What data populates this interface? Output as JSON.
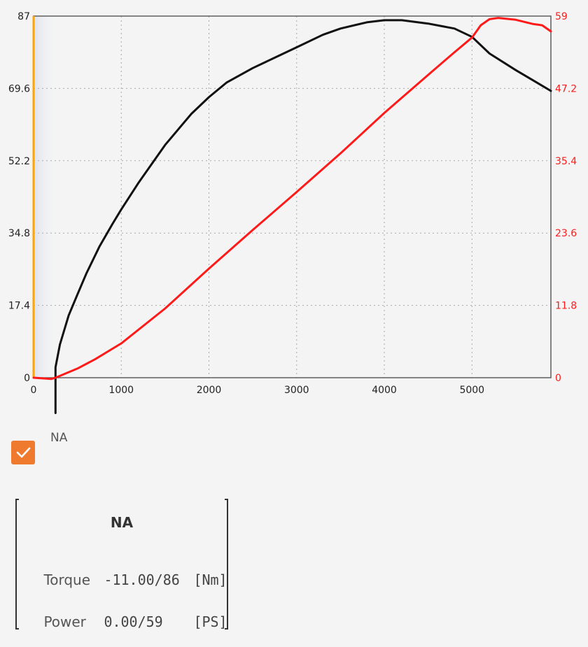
{
  "colors": {
    "torque": "#111111",
    "power": "#ff1a1a",
    "left_axis": "#ffa500",
    "right_tick_text": "#ff1a1a",
    "grid": "#a8a8a8",
    "checkbox": "#ef7a2e"
  },
  "chart_data": {
    "type": "line",
    "x_axis": {
      "range": [
        0,
        5900
      ],
      "ticks": [
        "0",
        "1000",
        "2000",
        "3000",
        "4000",
        "5000"
      ]
    },
    "y_left": {
      "range": [
        0,
        87
      ],
      "ticks": [
        "0",
        "17.4",
        "34.8",
        "52.2",
        "69.6",
        "87"
      ]
    },
    "y_right": {
      "range": [
        0,
        59
      ],
      "ticks": [
        "0",
        "11.8",
        "23.6",
        "35.4",
        "47.2",
        "59"
      ]
    },
    "grid": true,
    "series": [
      {
        "name": "Torque",
        "axis": "left",
        "color": "#111111",
        "x": [
          250,
          250,
          300,
          400,
          500,
          600,
          750,
          900,
          1000,
          1200,
          1500,
          1800,
          2000,
          2200,
          2500,
          2800,
          3000,
          3300,
          3500,
          3800,
          4000,
          4200,
          4500,
          4800,
          5000,
          5200,
          5500,
          5700,
          5900
        ],
        "y": [
          -8.5,
          2.5,
          8,
          15,
          20,
          25,
          31.5,
          37,
          40.5,
          47,
          56,
          63.5,
          67.5,
          71,
          74.5,
          77.5,
          79.5,
          82.5,
          84,
          85.5,
          86,
          86,
          85.2,
          84,
          82,
          78,
          74,
          71.5,
          69
        ]
      },
      {
        "name": "Power",
        "axis": "right",
        "color": "#ff1a1a",
        "x": [
          0,
          200,
          250,
          500,
          700,
          1000,
          1500,
          2000,
          2500,
          3000,
          3500,
          4000,
          4500,
          4800,
          5000,
          5100,
          5200,
          5300,
          5500,
          5700,
          5800,
          5900
        ],
        "y": [
          0,
          -0.2,
          0,
          1.5,
          3,
          5.6,
          11.3,
          17.8,
          24.1,
          30.3,
          36.6,
          43.2,
          49.4,
          53.1,
          55.5,
          57.5,
          58.5,
          58.7,
          58.4,
          57.7,
          57.5,
          56.5
        ]
      }
    ]
  },
  "legend": {
    "label": "NA",
    "checked": true
  },
  "info": {
    "title": "NA",
    "rows": [
      {
        "label": "Torque",
        "value": "-11.00/86",
        "unit": "[Nm]"
      },
      {
        "label": "Power",
        "value": "0.00/59",
        "unit": "[PS]"
      }
    ]
  }
}
